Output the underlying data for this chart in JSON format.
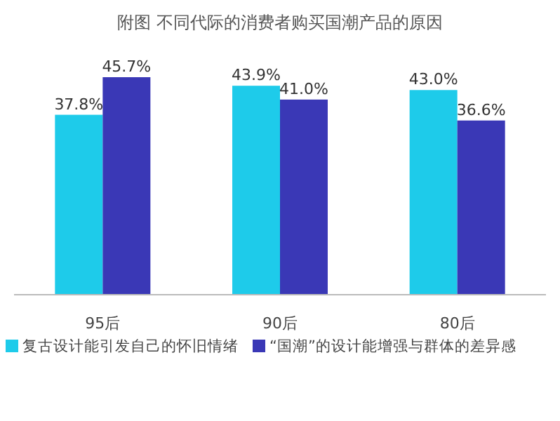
{
  "chart_data": {
    "type": "bar",
    "title": "附图 不同代际的消费者购买国潮产品的原因",
    "categories": [
      "95后",
      "90后",
      "80后"
    ],
    "series": [
      {
        "name": "复古设计能引发自己的怀旧情绪",
        "color": "#1ecbea",
        "values": [
          37.8,
          43.9,
          43.0
        ],
        "value_labels": [
          "37.8%",
          "43.9%",
          "43.0%"
        ]
      },
      {
        "name": "“国潮”的设计能增强与群体的差异感",
        "color": "#3a38b6",
        "values": [
          45.7,
          41.0,
          36.6
        ],
        "value_labels": [
          "45.7%",
          "41.0%",
          "36.6%"
        ]
      }
    ],
    "legend": "bottom"
  }
}
